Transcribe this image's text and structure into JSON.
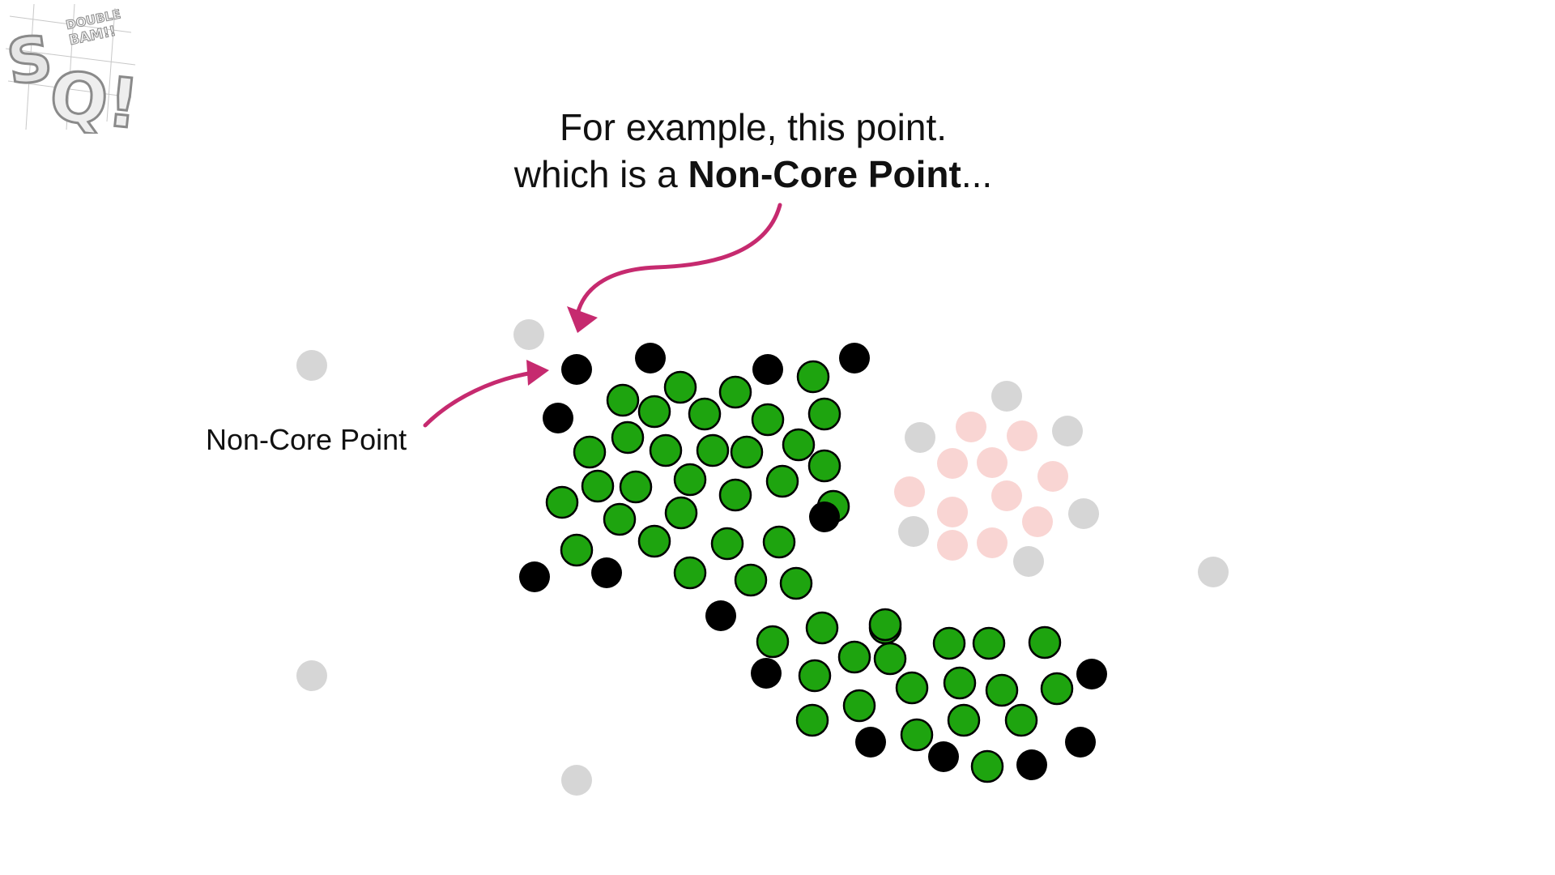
{
  "logo": {
    "text_main": "SQ!",
    "text_small": "DOUBLE BAM!!"
  },
  "caption": {
    "line1": "For example, this point.",
    "line2_prefix": "which is a ",
    "line2_bold": "Non-Core Point",
    "line2_suffix": "..."
  },
  "side_label": "Non-Core Point",
  "colors": {
    "core": "#1ea40f",
    "non_core": "#000000",
    "outlier": "#d6d6d6",
    "other_cluster": "#f9d5d3",
    "arrow": "#c62a6f",
    "text": "#111111"
  }
}
